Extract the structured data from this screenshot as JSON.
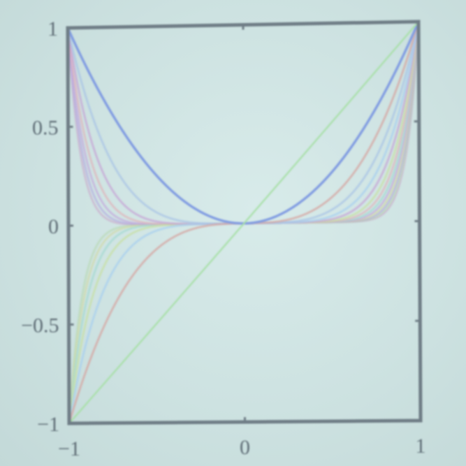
{
  "chart_data": {
    "type": "line",
    "title": "",
    "xlabel": "",
    "ylabel": "",
    "xlim": [
      -1,
      1
    ],
    "ylim": [
      -1,
      1
    ],
    "grid": false,
    "xticks": [
      {
        "value": -1,
        "label": "−1"
      },
      {
        "value": 0,
        "label": "0"
      },
      {
        "value": 1,
        "label": "1"
      }
    ],
    "yticks": [
      {
        "value": 1,
        "label": "1"
      },
      {
        "value": 0.5,
        "label": "0.5"
      },
      {
        "value": 0,
        "label": "0"
      },
      {
        "value": -0.5,
        "label": "−0.5"
      },
      {
        "value": -1,
        "label": "−1"
      }
    ],
    "function": "y = x^n",
    "series": [
      {
        "exponent": 1,
        "color": "#a9e0a9",
        "opacity": 0.9,
        "width": 2.5
      },
      {
        "exponent": 2,
        "color": "#7f9be2",
        "opacity": 0.95,
        "width": 3.5
      },
      {
        "exponent": 3,
        "color": "#d6a7a3",
        "opacity": 0.75,
        "width": 3
      },
      {
        "exponent": 4,
        "color": "#a8c3e6",
        "opacity": 0.7,
        "width": 3
      },
      {
        "exponent": 5,
        "color": "#a6cff0",
        "opacity": 0.7,
        "width": 3
      },
      {
        "exponent": 6,
        "color": "#c6a4d6",
        "opacity": 0.7,
        "width": 3
      },
      {
        "exponent": 7,
        "color": "#c8e0a2",
        "opacity": 0.7,
        "width": 3
      },
      {
        "exponent": 8,
        "color": "#e0b0b8",
        "opacity": 0.65,
        "width": 3
      },
      {
        "exponent": 9,
        "color": "#a2d8d0",
        "opacity": 0.65,
        "width": 3
      },
      {
        "exponent": 10,
        "color": "#c3a6dc",
        "opacity": 0.65,
        "width": 3
      },
      {
        "exponent": 11,
        "color": "#d0d8a0",
        "opacity": 0.6,
        "width": 3
      },
      {
        "exponent": 12,
        "color": "#b2a6e0",
        "opacity": 0.6,
        "width": 3
      },
      {
        "exponent": 13,
        "color": "#b8d8b0",
        "opacity": 0.6,
        "width": 3
      },
      {
        "exponent": 14,
        "color": "#caa8cc",
        "opacity": 0.6,
        "width": 3
      }
    ],
    "frame_color": "#6f7d86"
  }
}
